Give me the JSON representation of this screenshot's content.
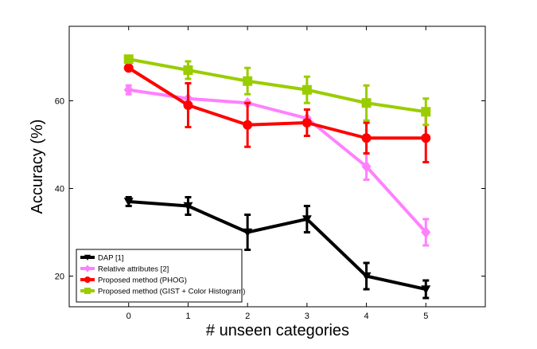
{
  "chart_data": {
    "type": "line",
    "title": "",
    "xlabel": "# unseen categories",
    "ylabel": "Accuracy  (%)",
    "x": [
      0,
      1,
      2,
      3,
      4,
      5
    ],
    "xticks": [
      "0",
      "1",
      "2",
      "3",
      "4",
      "5"
    ],
    "yticks": [
      "20",
      "40",
      "60"
    ],
    "xlim": [
      -1,
      6
    ],
    "ylim": [
      13,
      77
    ],
    "grid": false,
    "legend_position": "bottom-left",
    "series": [
      {
        "name": "DAP [1]",
        "color": "#000000",
        "marker": "triangle-down",
        "values": [
          37,
          36,
          30,
          33,
          20,
          17
        ],
        "errors": [
          1,
          2,
          4,
          3,
          3,
          2
        ]
      },
      {
        "name": "Relative attributes [2]",
        "color": "#ff80ff",
        "marker": "diamond",
        "values": [
          62.5,
          60.5,
          59.5,
          56,
          45,
          30
        ],
        "errors": [
          1,
          0,
          0,
          0,
          3,
          3
        ]
      },
      {
        "name": "Proposed method (PHOG)",
        "color": "#ff0000",
        "marker": "circle",
        "values": [
          67.5,
          59,
          54.5,
          55,
          51.5,
          51.5
        ],
        "errors": [
          0.5,
          5,
          5,
          3,
          3.5,
          5.5
        ]
      },
      {
        "name": "Proposed method (GIST + Color Histogram)",
        "color": "#9acd00",
        "marker": "square",
        "values": [
          69.5,
          67,
          64.5,
          62.5,
          59.5,
          57.5
        ],
        "errors": [
          0.5,
          2,
          3,
          3,
          4,
          3
        ]
      }
    ]
  }
}
